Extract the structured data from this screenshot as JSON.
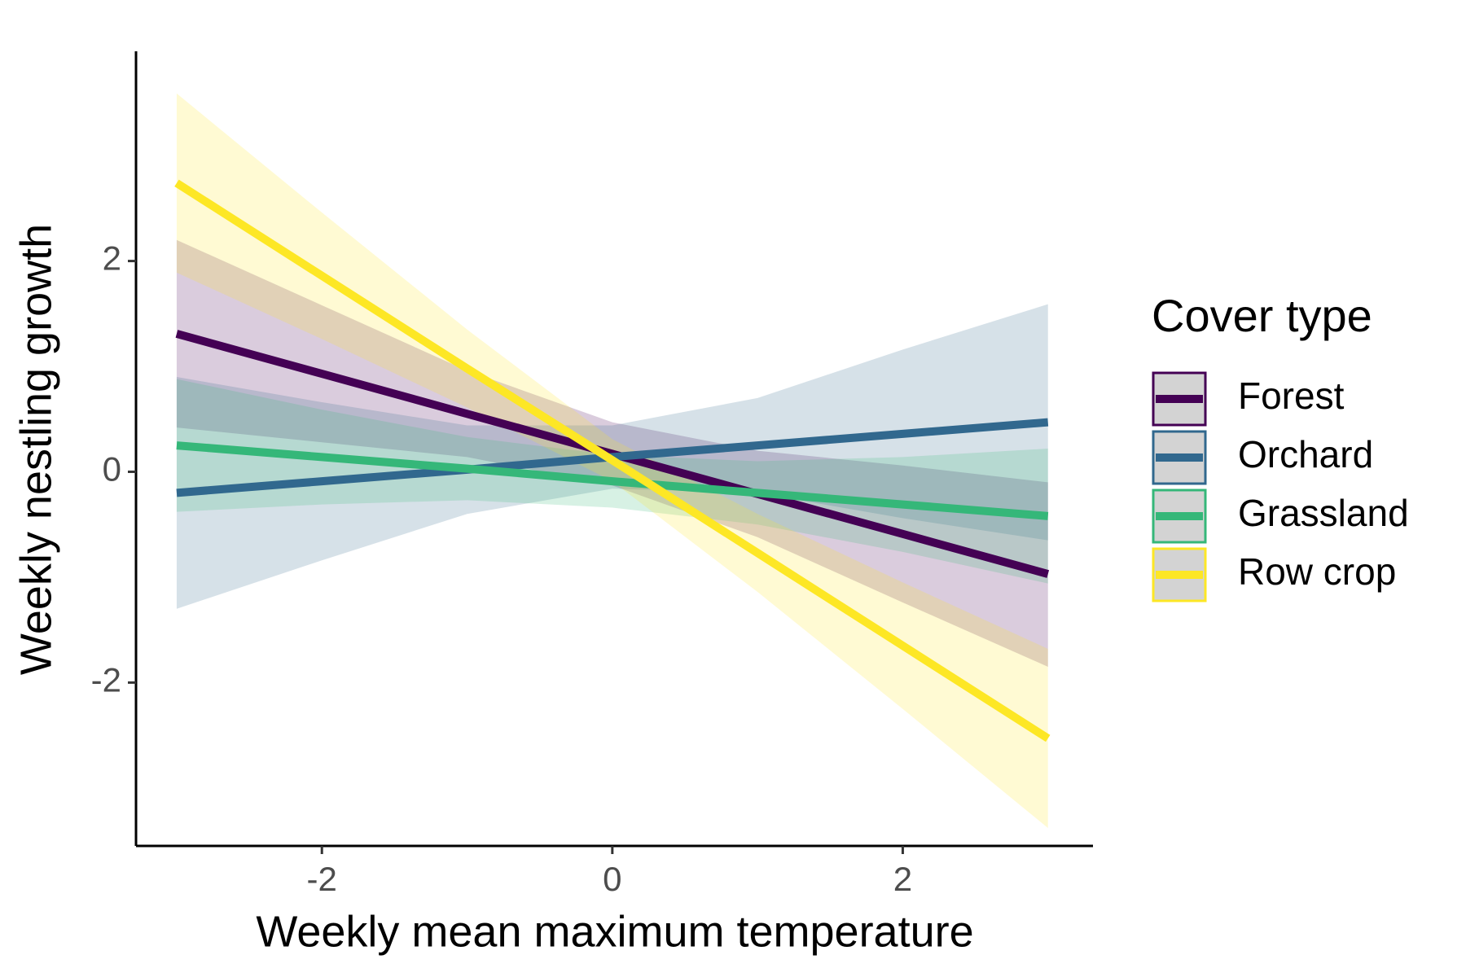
{
  "chart_data": {
    "type": "line",
    "xlabel": "Weekly mean maximum temperature",
    "ylabel": "Weekly nestling growth",
    "legend_title": "Cover type",
    "legend": "right",
    "x": [
      -3,
      -2,
      -1,
      0,
      1,
      2,
      3
    ],
    "xlim": [
      -3.28,
      3.31
    ],
    "ylim": [
      -3.55,
      3.99
    ],
    "xticks": [
      -2,
      0,
      2
    ],
    "yticks": [
      -2,
      0,
      2
    ],
    "band_opacity": 0.2,
    "series": [
      {
        "name": "Forest",
        "color": "#440154",
        "values": [
          1.31,
          0.93,
          0.55,
          0.17,
          -0.21,
          -0.59,
          -0.97
        ],
        "upper": [
          2.2,
          1.58,
          0.96,
          0.47,
          0.2,
          0.06,
          -0.1
        ],
        "lower": [
          0.42,
          0.28,
          0.14,
          -0.13,
          -0.62,
          -1.24,
          -1.85
        ]
      },
      {
        "name": "Orchard",
        "color": "#31688e",
        "values": [
          -0.2,
          -0.09,
          0.02,
          0.14,
          0.25,
          0.36,
          0.47
        ],
        "upper": [
          0.9,
          0.66,
          0.44,
          0.44,
          0.7,
          1.16,
          1.59
        ],
        "lower": [
          -1.3,
          -0.84,
          -0.4,
          -0.16,
          -0.2,
          -0.44,
          -0.65
        ]
      },
      {
        "name": "Grassland",
        "color": "#35b779",
        "values": [
          0.25,
          0.14,
          0.03,
          -0.09,
          -0.2,
          -0.31,
          -0.42
        ],
        "upper": [
          0.88,
          0.59,
          0.33,
          0.16,
          0.1,
          0.14,
          0.22
        ],
        "lower": [
          -0.38,
          -0.31,
          -0.27,
          -0.34,
          -0.5,
          -0.76,
          -1.06
        ]
      },
      {
        "name": "Row crop",
        "color": "#fde725",
        "values": [
          2.74,
          1.86,
          0.98,
          0.11,
          -0.77,
          -1.65,
          -2.53
        ],
        "upper": [
          3.59,
          2.46,
          1.35,
          0.31,
          -0.4,
          -1.05,
          -1.68
        ],
        "lower": [
          1.89,
          1.26,
          0.61,
          -0.09,
          -1.14,
          -2.25,
          -3.38
        ]
      }
    ]
  }
}
